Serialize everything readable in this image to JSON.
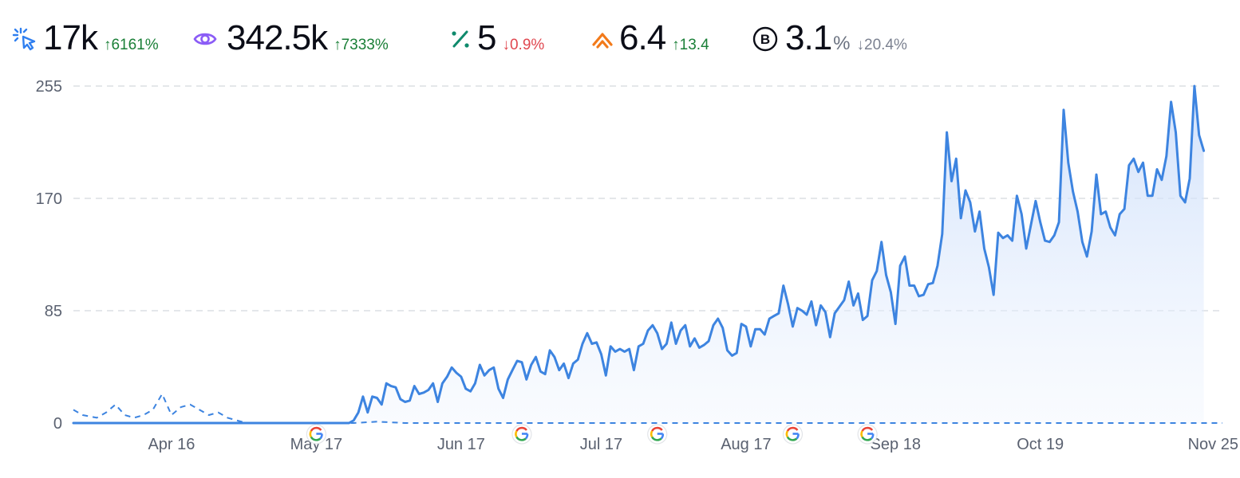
{
  "metrics": [
    {
      "name": "clicks",
      "icon": "cursor-click-icon",
      "value": "17k",
      "unit": "",
      "change": "6161%",
      "direction": "up",
      "color": "#2f7ff0"
    },
    {
      "name": "impressions",
      "icon": "eye-icon",
      "value": "342.5k",
      "unit": "",
      "change": "7333%",
      "direction": "up",
      "color": "#8b5cf6"
    },
    {
      "name": "ctr",
      "icon": "percent-icon",
      "value": "5",
      "unit": "",
      "change": "0.9%",
      "direction": "down",
      "color": "#0f8a6c"
    },
    {
      "name": "position",
      "icon": "position-chevrons-icon",
      "value": "6.4",
      "unit": "",
      "change": "13.4",
      "direction": "up",
      "color": "#f27a1a"
    },
    {
      "name": "bounce",
      "icon": "b-circle-icon",
      "value": "3.1",
      "unit": "%",
      "change": "20.4%",
      "direction": "down-gray",
      "color": "#0b0d17"
    }
  ],
  "chart_data": {
    "type": "area",
    "ylim": [
      0,
      255
    ],
    "yticks": [
      0,
      85,
      170,
      255
    ],
    "x_start": "2024-03-26",
    "x_end": "2024-11-27",
    "xticks": [
      {
        "date": "2024-04-16",
        "label": "Apr 16"
      },
      {
        "date": "2024-05-17",
        "label": "May 17"
      },
      {
        "date": "2024-06-17",
        "label": "Jun 17"
      },
      {
        "date": "2024-07-17",
        "label": "Jul 17"
      },
      {
        "date": "2024-08-17",
        "label": "Aug 17"
      },
      {
        "date": "2024-09-18",
        "label": "Sep 18"
      },
      {
        "date": "2024-10-19",
        "label": "Oct 19"
      },
      {
        "date": "2024-11-25",
        "label": "Nov 25"
      }
    ],
    "google_update_markers": [
      "2024-05-17",
      "2024-06-30",
      "2024-07-29",
      "2024-08-27",
      "2024-09-12"
    ],
    "grid": true,
    "series": [
      {
        "style": "dashed-previous",
        "color": "#3d84e0",
        "points": [
          [
            "2024-03-26",
            10
          ],
          [
            "2024-03-28",
            6
          ],
          [
            "2024-03-31",
            4
          ],
          [
            "2024-04-02",
            8
          ],
          [
            "2024-04-04",
            14
          ],
          [
            "2024-04-06",
            6
          ],
          [
            "2024-04-08",
            4
          ],
          [
            "2024-04-10",
            6
          ],
          [
            "2024-04-12",
            10
          ],
          [
            "2024-04-14",
            22
          ],
          [
            "2024-04-16",
            6
          ],
          [
            "2024-04-18",
            12
          ],
          [
            "2024-04-20",
            14
          ],
          [
            "2024-04-22",
            10
          ],
          [
            "2024-04-24",
            6
          ],
          [
            "2024-04-26",
            8
          ],
          [
            "2024-04-28",
            4
          ],
          [
            "2024-04-30",
            2
          ],
          [
            "2024-05-02",
            0
          ],
          [
            "2024-05-25",
            0
          ],
          [
            "2024-05-30",
            1
          ],
          [
            "2024-06-05",
            0
          ],
          [
            "2024-11-27",
            0
          ]
        ]
      },
      {
        "style": "solid-current",
        "color": "#3d84e0",
        "points": [
          [
            "2024-03-26",
            0
          ],
          [
            "2024-05-24",
            0
          ],
          [
            "2024-05-25",
            2
          ],
          [
            "2024-05-26",
            8
          ],
          [
            "2024-05-27",
            20
          ],
          [
            "2024-05-28",
            8
          ],
          [
            "2024-05-29",
            20
          ],
          [
            "2024-05-30",
            19
          ],
          [
            "2024-05-31",
            14
          ],
          [
            "2024-06-01",
            30
          ],
          [
            "2024-06-02",
            28
          ],
          [
            "2024-06-03",
            27
          ],
          [
            "2024-06-04",
            18
          ],
          [
            "2024-06-05",
            16
          ],
          [
            "2024-06-06",
            17
          ],
          [
            "2024-06-07",
            28
          ],
          [
            "2024-06-08",
            22
          ],
          [
            "2024-06-09",
            23
          ],
          [
            "2024-06-10",
            25
          ],
          [
            "2024-06-11",
            30
          ],
          [
            "2024-06-12",
            16
          ],
          [
            "2024-06-13",
            30
          ],
          [
            "2024-06-14",
            35
          ],
          [
            "2024-06-15",
            42
          ],
          [
            "2024-06-16",
            38
          ],
          [
            "2024-06-17",
            35
          ],
          [
            "2024-06-18",
            26
          ],
          [
            "2024-06-19",
            24
          ],
          [
            "2024-06-20",
            30
          ],
          [
            "2024-06-21",
            44
          ],
          [
            "2024-06-22",
            36
          ],
          [
            "2024-06-23",
            40
          ],
          [
            "2024-06-24",
            42
          ],
          [
            "2024-06-25",
            26
          ],
          [
            "2024-06-26",
            19
          ],
          [
            "2024-06-27",
            33
          ],
          [
            "2024-06-28",
            40
          ],
          [
            "2024-06-29",
            47
          ],
          [
            "2024-06-30",
            46
          ],
          [
            "2024-07-01",
            33
          ],
          [
            "2024-07-02",
            44
          ],
          [
            "2024-07-03",
            50
          ],
          [
            "2024-07-04",
            39
          ],
          [
            "2024-07-05",
            37
          ],
          [
            "2024-07-06",
            55
          ],
          [
            "2024-07-07",
            50
          ],
          [
            "2024-07-08",
            40
          ],
          [
            "2024-07-09",
            45
          ],
          [
            "2024-07-10",
            34
          ],
          [
            "2024-07-11",
            45
          ],
          [
            "2024-07-12",
            48
          ],
          [
            "2024-07-13",
            60
          ],
          [
            "2024-07-14",
            68
          ],
          [
            "2024-07-15",
            60
          ],
          [
            "2024-07-16",
            61
          ],
          [
            "2024-07-17",
            52
          ],
          [
            "2024-07-18",
            36
          ],
          [
            "2024-07-19",
            58
          ],
          [
            "2024-07-20",
            54
          ],
          [
            "2024-07-21",
            56
          ],
          [
            "2024-07-22",
            54
          ],
          [
            "2024-07-23",
            56
          ],
          [
            "2024-07-24",
            40
          ],
          [
            "2024-07-25",
            58
          ],
          [
            "2024-07-26",
            60
          ],
          [
            "2024-07-27",
            70
          ],
          [
            "2024-07-28",
            74
          ],
          [
            "2024-07-29",
            68
          ],
          [
            "2024-07-30",
            56
          ],
          [
            "2024-07-31",
            60
          ],
          [
            "2024-08-01",
            76
          ],
          [
            "2024-08-02",
            60
          ],
          [
            "2024-08-03",
            70
          ],
          [
            "2024-08-04",
            74
          ],
          [
            "2024-08-05",
            58
          ],
          [
            "2024-08-06",
            64
          ],
          [
            "2024-08-07",
            57
          ],
          [
            "2024-08-08",
            59
          ],
          [
            "2024-08-09",
            62
          ],
          [
            "2024-08-10",
            74
          ],
          [
            "2024-08-11",
            79
          ],
          [
            "2024-08-12",
            72
          ],
          [
            "2024-08-13",
            55
          ],
          [
            "2024-08-14",
            51
          ],
          [
            "2024-08-15",
            53
          ],
          [
            "2024-08-16",
            75
          ],
          [
            "2024-08-17",
            73
          ],
          [
            "2024-08-18",
            58
          ],
          [
            "2024-08-19",
            71
          ],
          [
            "2024-08-20",
            71
          ],
          [
            "2024-08-21",
            67
          ],
          [
            "2024-08-22",
            79
          ],
          [
            "2024-08-23",
            81
          ],
          [
            "2024-08-24",
            83
          ],
          [
            "2024-08-25",
            104
          ],
          [
            "2024-08-26",
            90
          ],
          [
            "2024-08-27",
            73
          ],
          [
            "2024-08-28",
            87
          ],
          [
            "2024-08-29",
            85
          ],
          [
            "2024-08-30",
            82
          ],
          [
            "2024-08-31",
            92
          ],
          [
            "2024-09-01",
            74
          ],
          [
            "2024-09-02",
            89
          ],
          [
            "2024-09-03",
            84
          ],
          [
            "2024-09-04",
            65
          ],
          [
            "2024-09-05",
            83
          ],
          [
            "2024-09-06",
            88
          ],
          [
            "2024-09-07",
            93
          ],
          [
            "2024-09-08",
            107
          ],
          [
            "2024-09-09",
            89
          ],
          [
            "2024-09-10",
            98
          ],
          [
            "2024-09-11",
            78
          ],
          [
            "2024-09-12",
            81
          ],
          [
            "2024-09-13",
            108
          ],
          [
            "2024-09-14",
            115
          ],
          [
            "2024-09-15",
            137
          ],
          [
            "2024-09-16",
            112
          ],
          [
            "2024-09-17",
            99
          ],
          [
            "2024-09-18",
            75
          ],
          [
            "2024-09-19",
            119
          ],
          [
            "2024-09-20",
            126
          ],
          [
            "2024-09-21",
            104
          ],
          [
            "2024-09-22",
            104
          ],
          [
            "2024-09-23",
            96
          ],
          [
            "2024-09-24",
            97
          ],
          [
            "2024-09-25",
            105
          ],
          [
            "2024-09-26",
            106
          ],
          [
            "2024-09-27",
            119
          ],
          [
            "2024-09-28",
            143
          ],
          [
            "2024-09-29",
            220
          ],
          [
            "2024-09-30",
            183
          ],
          [
            "2024-10-01",
            200
          ],
          [
            "2024-10-02",
            155
          ],
          [
            "2024-10-03",
            176
          ],
          [
            "2024-10-04",
            167
          ],
          [
            "2024-10-05",
            145
          ],
          [
            "2024-10-06",
            160
          ],
          [
            "2024-10-07",
            132
          ],
          [
            "2024-10-08",
            118
          ],
          [
            "2024-10-09",
            97
          ],
          [
            "2024-10-10",
            144
          ],
          [
            "2024-10-11",
            140
          ],
          [
            "2024-10-12",
            142
          ],
          [
            "2024-10-13",
            138
          ],
          [
            "2024-10-14",
            172
          ],
          [
            "2024-10-15",
            158
          ],
          [
            "2024-10-16",
            132
          ],
          [
            "2024-10-17",
            150
          ],
          [
            "2024-10-18",
            168
          ],
          [
            "2024-10-19",
            152
          ],
          [
            "2024-10-20",
            138
          ],
          [
            "2024-10-21",
            137
          ],
          [
            "2024-10-22",
            142
          ],
          [
            "2024-10-23",
            152
          ],
          [
            "2024-10-24",
            237
          ],
          [
            "2024-10-25",
            197
          ],
          [
            "2024-10-26",
            175
          ],
          [
            "2024-10-27",
            160
          ],
          [
            "2024-10-28",
            137
          ],
          [
            "2024-10-29",
            126
          ],
          [
            "2024-10-30",
            145
          ],
          [
            "2024-10-31",
            188
          ],
          [
            "2024-11-01",
            158
          ],
          [
            "2024-11-02",
            160
          ],
          [
            "2024-11-03",
            148
          ],
          [
            "2024-11-04",
            142
          ],
          [
            "2024-11-05",
            158
          ],
          [
            "2024-11-06",
            162
          ],
          [
            "2024-11-07",
            195
          ],
          [
            "2024-11-08",
            200
          ],
          [
            "2024-11-09",
            190
          ],
          [
            "2024-11-10",
            197
          ],
          [
            "2024-11-11",
            172
          ],
          [
            "2024-11-12",
            172
          ],
          [
            "2024-11-13",
            192
          ],
          [
            "2024-11-14",
            184
          ],
          [
            "2024-11-15",
            202
          ],
          [
            "2024-11-16",
            243
          ],
          [
            "2024-11-17",
            220
          ],
          [
            "2024-11-18",
            172
          ],
          [
            "2024-11-19",
            167
          ],
          [
            "2024-11-20",
            185
          ],
          [
            "2024-11-21",
            255
          ],
          [
            "2024-11-22",
            218
          ],
          [
            "2024-11-23",
            206
          ]
        ]
      }
    ]
  }
}
